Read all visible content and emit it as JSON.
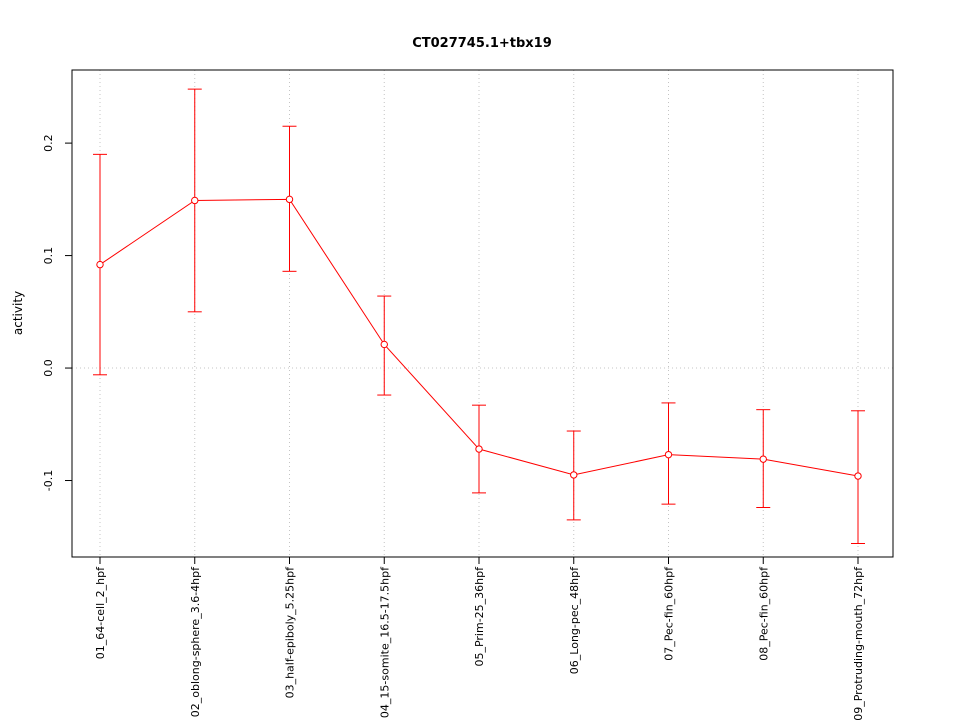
{
  "page": {
    "background": "#ffffff"
  },
  "chart_data": {
    "type": "line",
    "title": "CT027745.1+tbx19",
    "xlabel": "",
    "ylabel": "activity",
    "categories": [
      "01_64-cell_2_hpf",
      "02_oblong-sphere_3.6-4hpf",
      "03_half-epiboly_5.25hpf",
      "04_15-somite_16.5-17.5hpf",
      "05_Prim-25_36hpf",
      "06_Long-pec_48hpf",
      "07_Pec-fin_60hpf",
      "08_Pec-fin_60hpf",
      "09_Protruding-mouth_72hpf"
    ],
    "values": [
      0.092,
      0.149,
      0.15,
      0.021,
      -0.072,
      -0.095,
      -0.077,
      -0.081,
      -0.096
    ],
    "error_low": [
      -0.006,
      0.05,
      0.086,
      -0.024,
      -0.111,
      -0.135,
      -0.121,
      -0.124,
      -0.156
    ],
    "error_high": [
      0.19,
      0.248,
      0.215,
      0.064,
      -0.033,
      -0.056,
      -0.031,
      -0.037,
      -0.038
    ],
    "yticks": [
      -0.1,
      0.0,
      0.1,
      0.2
    ],
    "ylim": [
      -0.168,
      0.265
    ],
    "series_color": "#ff0000",
    "grid_color": "#c4c4c4",
    "point_style": "open-circle",
    "error_bar_style": "capped",
    "legend": "none",
    "grid": "dotted vertical line at each category; dotted horizontal line at y=0",
    "x_tick_label_rotation": -90,
    "y_tick_label_rotation": -90
  }
}
